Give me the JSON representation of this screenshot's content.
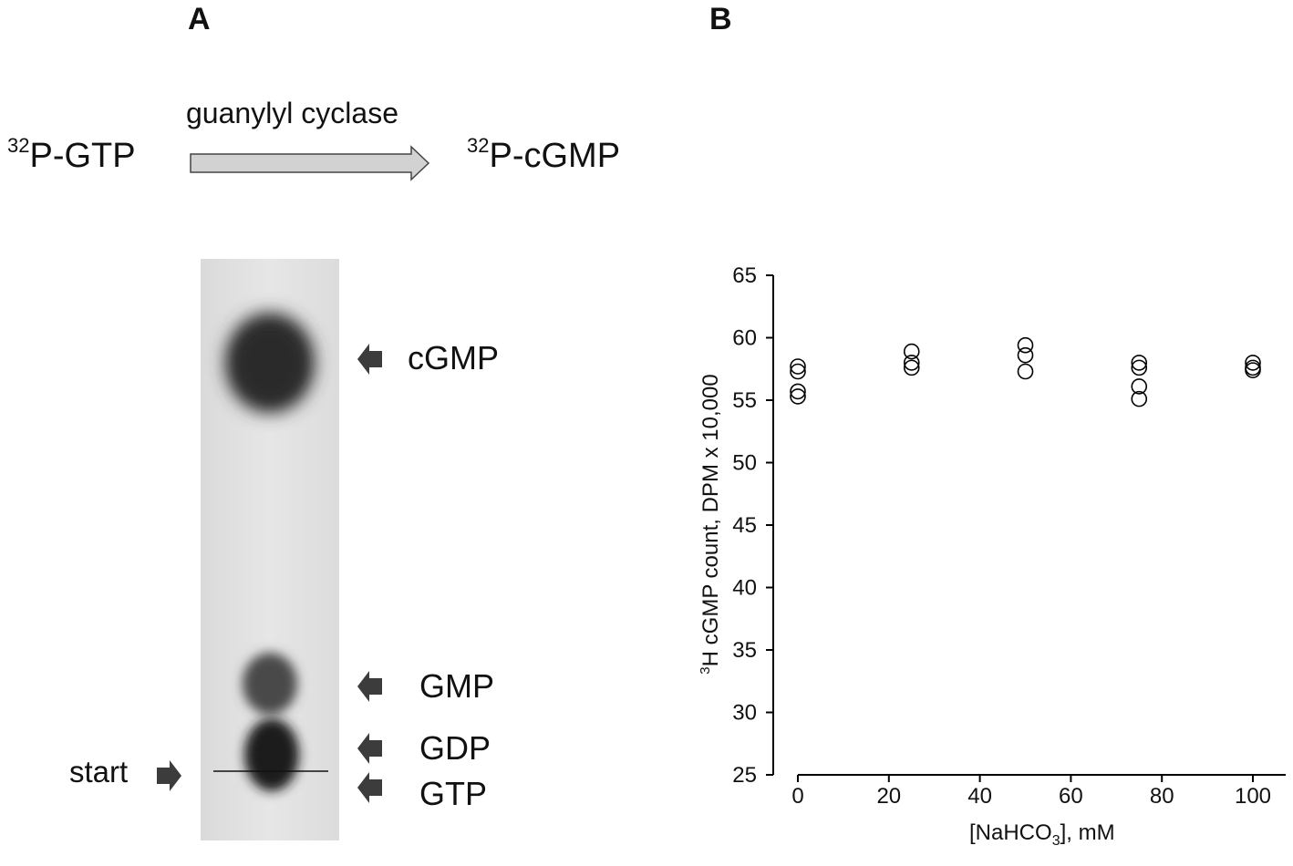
{
  "panelA": {
    "label": "A",
    "reaction": {
      "substrate_sup": "32",
      "substrate": "P-GTP",
      "enzyme": "guanylyl cyclase",
      "product_sup": "32",
      "product": "P-cGMP"
    },
    "tlc_labels": {
      "cgmp": "cGMP",
      "gmp": "GMP",
      "gdp": "GDP",
      "gtp": "GTP",
      "start": "start"
    }
  },
  "panelB": {
    "label": "B",
    "ylabel_sup": "3",
    "ylabel_main": "H cGMP count, DPM x 10,000",
    "xlabel_pre": "[NaHCO",
    "xlabel_sub": "3",
    "xlabel_post": "], mM"
  },
  "chart_data": {
    "type": "scatter",
    "title": "",
    "xlabel": "[NaHCO3], mM",
    "ylabel": "3H cGMP count, DPM x 10,000",
    "xlim": [
      0,
      100
    ],
    "ylim": [
      25,
      65
    ],
    "xticks": [
      0,
      20,
      40,
      60,
      80,
      100
    ],
    "yticks": [
      25,
      30,
      35,
      40,
      45,
      50,
      55,
      60,
      65
    ],
    "grid": false,
    "marker": "open-circle",
    "points": [
      {
        "x": 0,
        "y": 57.7
      },
      {
        "x": 0,
        "y": 57.3
      },
      {
        "x": 0,
        "y": 55.7
      },
      {
        "x": 0,
        "y": 55.3
      },
      {
        "x": 25,
        "y": 58.9
      },
      {
        "x": 25,
        "y": 58.0
      },
      {
        "x": 25,
        "y": 57.6
      },
      {
        "x": 50,
        "y": 59.4
      },
      {
        "x": 50,
        "y": 58.6
      },
      {
        "x": 50,
        "y": 57.3
      },
      {
        "x": 75,
        "y": 58.0
      },
      {
        "x": 75,
        "y": 57.6
      },
      {
        "x": 75,
        "y": 56.1
      },
      {
        "x": 75,
        "y": 55.1
      },
      {
        "x": 100,
        "y": 58.0
      },
      {
        "x": 100,
        "y": 57.6
      },
      {
        "x": 100,
        "y": 57.4
      }
    ]
  }
}
